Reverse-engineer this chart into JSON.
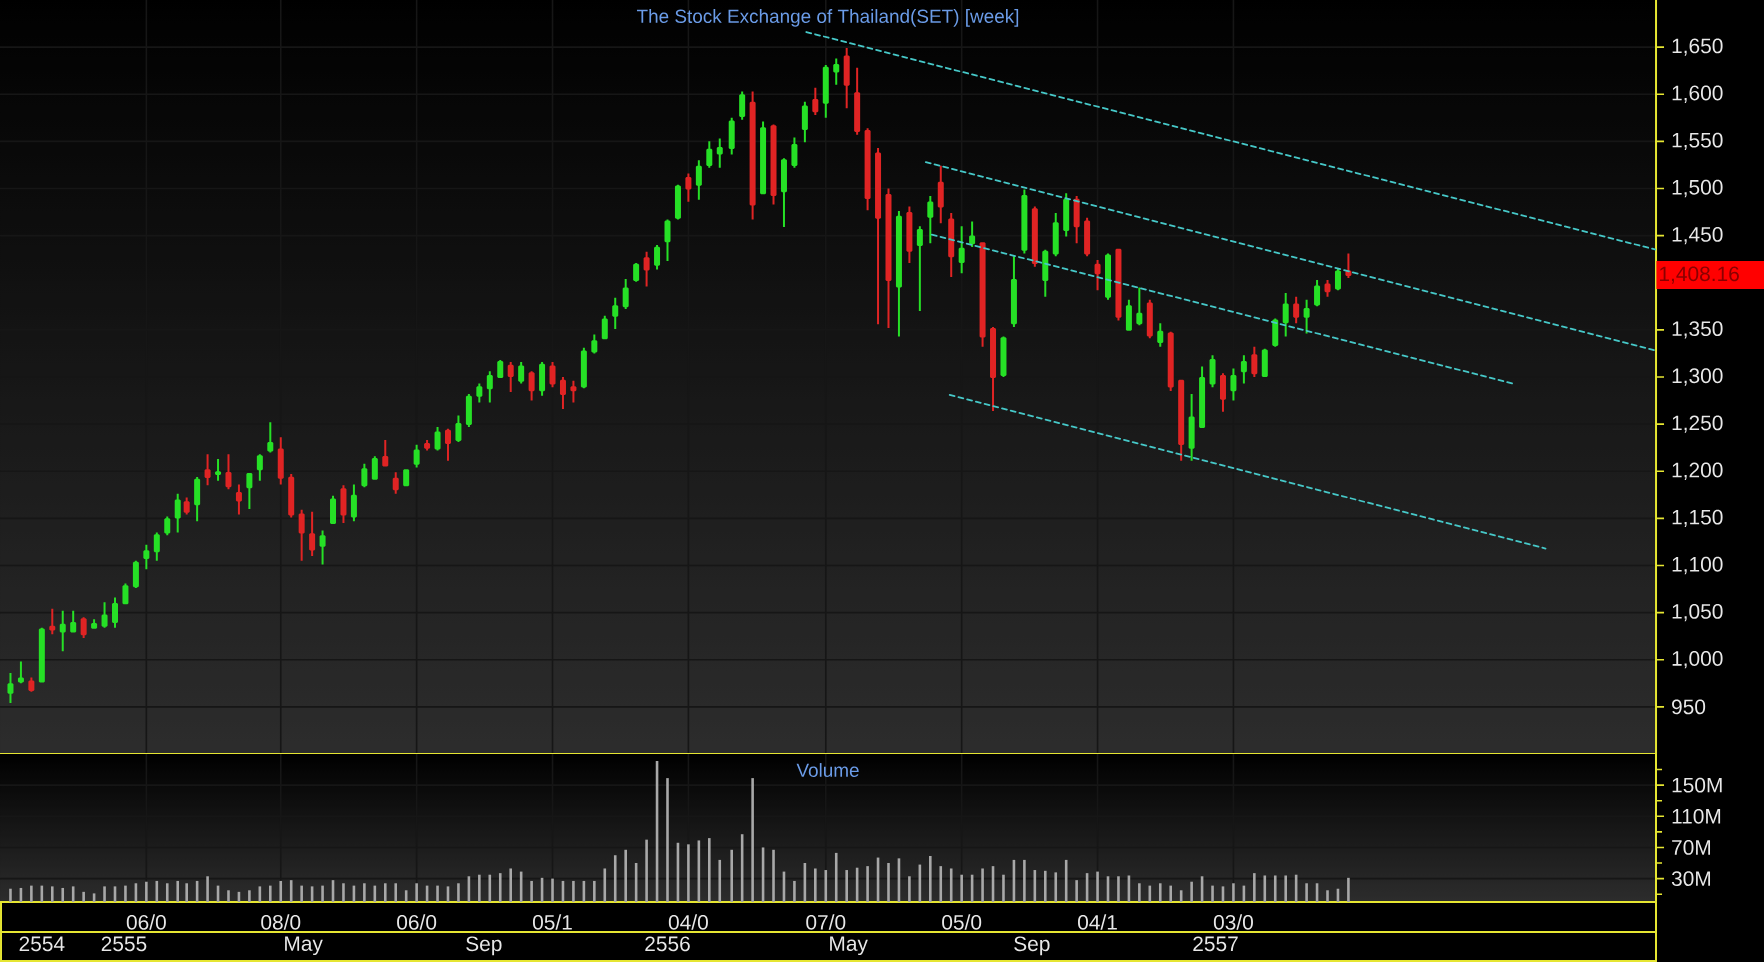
{
  "chart_data": [
    {
      "type": "candlestick",
      "title": "The Stock Exchange of Thailand(SET) [week]",
      "x": [
        "2554-11-07",
        "2554-11-14",
        "2554-11-21",
        "2554-11-28",
        "2554-12-05",
        "2554-12-12",
        "2554-12-19",
        "2554-12-26",
        "2555-01-02",
        "2555-01-09",
        "2555-01-16",
        "2555-01-23",
        "2555-01-30",
        "2555-02-06",
        "2555-02-13",
        "2555-02-20",
        "2555-02-27",
        "2555-03-05",
        "2555-03-12",
        "2555-03-19",
        "2555-03-26",
        "2555-04-02",
        "2555-04-09",
        "2555-04-16",
        "2555-04-23",
        "2555-04-30",
        "2555-05-07",
        "2555-05-14",
        "2555-05-21",
        "2555-05-28",
        "2555-06-04",
        "2555-06-11",
        "2555-06-18",
        "2555-06-25",
        "2555-07-02",
        "2555-07-09",
        "2555-07-16",
        "2555-07-23",
        "2555-07-30",
        "2555-08-06",
        "2555-08-13",
        "2555-08-20",
        "2555-08-27",
        "2555-09-03",
        "2555-09-10",
        "2555-09-17",
        "2555-09-24",
        "2555-10-01",
        "2555-10-08",
        "2555-10-15",
        "2555-10-22",
        "2555-10-29",
        "2555-11-05",
        "2555-11-12",
        "2555-11-19",
        "2555-11-26",
        "2555-12-03",
        "2555-12-10",
        "2555-12-17",
        "2555-12-24",
        "2555-12-31",
        "2556-01-07",
        "2556-01-14",
        "2556-01-21",
        "2556-01-28",
        "2556-02-04",
        "2556-02-11",
        "2556-02-18",
        "2556-02-25",
        "2556-03-04",
        "2556-03-11",
        "2556-03-18",
        "2556-03-25",
        "2556-04-01",
        "2556-04-08",
        "2556-04-15",
        "2556-04-22",
        "2556-04-29",
        "2556-05-06",
        "2556-05-13",
        "2556-05-20",
        "2556-05-27",
        "2556-06-03",
        "2556-06-10",
        "2556-06-17",
        "2556-06-24",
        "2556-07-01",
        "2556-07-08",
        "2556-07-15",
        "2556-07-22",
        "2556-07-29",
        "2556-08-05",
        "2556-08-12",
        "2556-08-19",
        "2556-08-26",
        "2556-09-02",
        "2556-09-09",
        "2556-09-16",
        "2556-09-23",
        "2556-09-30",
        "2556-10-07",
        "2556-10-14",
        "2556-10-21",
        "2556-10-28",
        "2556-11-04",
        "2556-11-11",
        "2556-11-18",
        "2556-11-25",
        "2556-12-02",
        "2556-12-09",
        "2556-12-16",
        "2556-12-23",
        "2556-12-30",
        "2557-01-06",
        "2557-01-13",
        "2557-01-20",
        "2557-01-27",
        "2557-02-03",
        "2557-02-10",
        "2557-02-17",
        "2557-02-24",
        "2557-03-03",
        "2557-03-10",
        "2557-03-17",
        "2557-03-24",
        "2557-03-31",
        "2557-04-07",
        "2557-04-14",
        "2557-04-21"
      ],
      "ohlc": [
        [
          965,
          986,
          954,
          974
        ],
        [
          977,
          998,
          975,
          980
        ],
        [
          977,
          981,
          966,
          968
        ],
        [
          977,
          1034,
          976,
          1032
        ],
        [
          1035,
          1054,
          1027,
          1032
        ],
        [
          1030,
          1052,
          1009,
          1037
        ],
        [
          1030,
          1052,
          1030,
          1039
        ],
        [
          1043,
          1045,
          1023,
          1027
        ],
        [
          1034,
          1043,
          1033,
          1038
        ],
        [
          1036,
          1061,
          1034,
          1047
        ],
        [
          1040,
          1066,
          1034,
          1059
        ],
        [
          1060,
          1081,
          1059,
          1078
        ],
        [
          1078,
          1105,
          1076,
          1103
        ],
        [
          1108,
          1122,
          1096,
          1115
        ],
        [
          1115,
          1135,
          1105,
          1132
        ],
        [
          1135,
          1152,
          1132,
          1149
        ],
        [
          1151,
          1176,
          1135,
          1169
        ],
        [
          1167,
          1172,
          1154,
          1157
        ],
        [
          1165,
          1194,
          1147,
          1191
        ],
        [
          1201,
          1218,
          1185,
          1194
        ],
        [
          1197,
          1213,
          1190,
          1199
        ],
        [
          1198,
          1218,
          1181,
          1184
        ],
        [
          1177,
          1186,
          1154,
          1169
        ],
        [
          1183,
          1197,
          1160,
          1197
        ],
        [
          1202,
          1218,
          1190,
          1216
        ],
        [
          1222,
          1252,
          1220,
          1230
        ],
        [
          1223,
          1236,
          1186,
          1193
        ],
        [
          1193,
          1197,
          1151,
          1154
        ],
        [
          1154,
          1159,
          1105,
          1135
        ],
        [
          1133,
          1157,
          1110,
          1117
        ],
        [
          1121,
          1137,
          1101,
          1131
        ],
        [
          1145,
          1174,
          1144,
          1170
        ],
        [
          1181,
          1185,
          1145,
          1154
        ],
        [
          1152,
          1186,
          1147,
          1174
        ],
        [
          1185,
          1208,
          1183,
          1202
        ],
        [
          1192,
          1216,
          1191,
          1213
        ],
        [
          1215,
          1233,
          1206,
          1206
        ],
        [
          1192,
          1199,
          1176,
          1181
        ],
        [
          1185,
          1202,
          1185,
          1201
        ],
        [
          1208,
          1228,
          1204,
          1222
        ],
        [
          1229,
          1233,
          1222,
          1225
        ],
        [
          1224,
          1247,
          1222,
          1241
        ],
        [
          1243,
          1245,
          1211,
          1230
        ],
        [
          1233,
          1259,
          1231,
          1250
        ],
        [
          1250,
          1282,
          1247,
          1279
        ],
        [
          1280,
          1293,
          1273,
          1289
        ],
        [
          1288,
          1306,
          1273,
          1301
        ],
        [
          1300,
          1318,
          1299,
          1316
        ],
        [
          1312,
          1316,
          1284,
          1301
        ],
        [
          1296,
          1316,
          1293,
          1311
        ],
        [
          1304,
          1306,
          1275,
          1286
        ],
        [
          1286,
          1316,
          1280,
          1313
        ],
        [
          1311,
          1316,
          1289,
          1293
        ],
        [
          1296,
          1300,
          1266,
          1282
        ],
        [
          1289,
          1296,
          1273,
          1286
        ],
        [
          1290,
          1331,
          1288,
          1327
        ],
        [
          1327,
          1345,
          1325,
          1338
        ],
        [
          1341,
          1365,
          1341,
          1361
        ],
        [
          1365,
          1384,
          1351,
          1375
        ],
        [
          1375,
          1404,
          1372,
          1394
        ],
        [
          1403,
          1421,
          1401,
          1419
        ],
        [
          1426,
          1433,
          1396,
          1414
        ],
        [
          1419,
          1440,
          1414,
          1437
        ],
        [
          1444,
          1467,
          1423,
          1465
        ],
        [
          1469,
          1504,
          1467,
          1502
        ],
        [
          1511,
          1516,
          1486,
          1500
        ],
        [
          1504,
          1530,
          1488,
          1523
        ],
        [
          1525,
          1550,
          1522,
          1541
        ],
        [
          1537,
          1553,
          1522,
          1543
        ],
        [
          1543,
          1575,
          1536,
          1571
        ],
        [
          1577,
          1603,
          1573,
          1599
        ],
        [
          1591,
          1603,
          1467,
          1483
        ],
        [
          1495,
          1571,
          1495,
          1564
        ],
        [
          1566,
          1568,
          1483,
          1493
        ],
        [
          1497,
          1532,
          1459,
          1530
        ],
        [
          1525,
          1554,
          1522,
          1546
        ],
        [
          1563,
          1592,
          1549,
          1587
        ],
        [
          1594,
          1607,
          1578,
          1582
        ],
        [
          1591,
          1631,
          1575,
          1628
        ],
        [
          1624,
          1638,
          1610,
          1631
        ],
        [
          1640,
          1649,
          1585,
          1610
        ],
        [
          1601,
          1628,
          1557,
          1561
        ],
        [
          1561,
          1564,
          1477,
          1490
        ],
        [
          1537,
          1543,
          1356,
          1469
        ],
        [
          1493,
          1500,
          1352,
          1403
        ],
        [
          1396,
          1476,
          1343,
          1470
        ],
        [
          1474,
          1481,
          1421,
          1434
        ],
        [
          1440,
          1460,
          1370,
          1456
        ],
        [
          1470,
          1492,
          1442,
          1485
        ],
        [
          1506,
          1524,
          1463,
          1481
        ],
        [
          1467,
          1474,
          1406,
          1428
        ],
        [
          1422,
          1460,
          1410,
          1436
        ],
        [
          1442,
          1465,
          1438,
          1449
        ],
        [
          1442,
          1443,
          1332,
          1343
        ],
        [
          1351,
          1353,
          1264,
          1300
        ],
        [
          1302,
          1343,
          1300,
          1341
        ],
        [
          1357,
          1428,
          1353,
          1403
        ],
        [
          1435,
          1499,
          1431,
          1492
        ],
        [
          1478,
          1481,
          1417,
          1421
        ],
        [
          1403,
          1435,
          1385,
          1433
        ],
        [
          1431,
          1474,
          1428,
          1463
        ],
        [
          1456,
          1495,
          1449,
          1488
        ],
        [
          1488,
          1492,
          1442,
          1460
        ],
        [
          1465,
          1469,
          1428,
          1431
        ],
        [
          1419,
          1424,
          1392,
          1410
        ],
        [
          1385,
          1431,
          1382,
          1429
        ],
        [
          1435,
          1435,
          1360,
          1364
        ],
        [
          1350,
          1382,
          1350,
          1375
        ],
        [
          1357,
          1395,
          1355,
          1367
        ],
        [
          1378,
          1382,
          1341,
          1344
        ],
        [
          1337,
          1357,
          1332,
          1348
        ],
        [
          1346,
          1348,
          1285,
          1290
        ],
        [
          1296,
          1296,
          1211,
          1229
        ],
        [
          1225,
          1282,
          1211,
          1257
        ],
        [
          1247,
          1311,
          1247,
          1299
        ],
        [
          1293,
          1323,
          1289,
          1318
        ],
        [
          1301,
          1304,
          1263,
          1277
        ],
        [
          1286,
          1309,
          1275,
          1301
        ],
        [
          1306,
          1323,
          1293,
          1316
        ],
        [
          1323,
          1332,
          1300,
          1304
        ],
        [
          1301,
          1330,
          1300,
          1328
        ],
        [
          1334,
          1362,
          1332,
          1360
        ],
        [
          1358,
          1389,
          1343,
          1377
        ],
        [
          1377,
          1385,
          1357,
          1364
        ],
        [
          1364,
          1382,
          1346,
          1372
        ],
        [
          1377,
          1403,
          1375,
          1396
        ],
        [
          1398,
          1403,
          1385,
          1391
        ],
        [
          1394,
          1415,
          1392,
          1412
        ],
        [
          1412,
          1431,
          1405,
          1408.16
        ]
      ],
      "colors": [
        "#26e026",
        "#26e026",
        "#e02424",
        "#26e026",
        "#e02424",
        "#26e026",
        "#26e026",
        "#e02424",
        "#26e026",
        "#26e026",
        "#26e026",
        "#26e026",
        "#26e026",
        "#26e026",
        "#26e026",
        "#26e026",
        "#26e026",
        "#e02424",
        "#26e026",
        "#e02424",
        "#26e026",
        "#e02424",
        "#e02424",
        "#26e026",
        "#26e026",
        "#26e026",
        "#e02424",
        "#e02424",
        "#e02424",
        "#e02424",
        "#26e026",
        "#26e026",
        "#e02424",
        "#26e026",
        "#26e026",
        "#26e026",
        "#e02424",
        "#e02424",
        "#26e026",
        "#26e026",
        "#e02424",
        "#26e026",
        "#e02424",
        "#26e026",
        "#26e026",
        "#26e026",
        "#26e026",
        "#26e026",
        "#e02424",
        "#26e026",
        "#e02424",
        "#26e026",
        "#e02424",
        "#e02424",
        "#e02424",
        "#26e026",
        "#26e026",
        "#26e026",
        "#26e026",
        "#26e026",
        "#26e026",
        "#e02424",
        "#26e026",
        "#26e026",
        "#26e026",
        "#e02424",
        "#26e026",
        "#26e026",
        "#26e026",
        "#26e026",
        "#26e026",
        "#e02424",
        "#26e026",
        "#e02424",
        "#26e026",
        "#26e026",
        "#26e026",
        "#e02424",
        "#26e026",
        "#26e026",
        "#e02424",
        "#e02424",
        "#e02424",
        "#e02424",
        "#e02424",
        "#26e026",
        "#e02424",
        "#26e026",
        "#26e026",
        "#e02424",
        "#e02424",
        "#26e026",
        "#26e026",
        "#e02424",
        "#e02424",
        "#26e026",
        "#26e026",
        "#26e026",
        "#e02424",
        "#26e026",
        "#26e026",
        "#26e026",
        "#e02424",
        "#e02424",
        "#e02424",
        "#26e026",
        "#e02424",
        "#26e026",
        "#26e026",
        "#e02424",
        "#26e026",
        "#e02424",
        "#e02424",
        "#26e026",
        "#26e026",
        "#26e026",
        "#e02424",
        "#26e026",
        "#26e026",
        "#e02424",
        "#26e026",
        "#26e026",
        "#26e026",
        "#e02424",
        "#26e026",
        "#26e026",
        "#e02424",
        "#26e026",
        "#e02424"
      ],
      "series": [
        {
          "type": "line",
          "x": [
            "2556-04-23",
            "2557-11-13"
          ],
          "values": [
            1666,
            1435
          ],
          "color": "#46c8c8",
          "line_style": "dashed"
        },
        {
          "type": "line",
          "x": [
            "2556-07-12",
            "2557-11-13"
          ],
          "values": [
            1528,
            1328
          ],
          "color": "#46c8c8",
          "line_style": "dashed"
        },
        {
          "type": "line",
          "x": [
            "2556-07-16",
            "2557-08-09"
          ],
          "values": [
            1451,
            1293
          ],
          "color": "#46c8c8",
          "line_style": "dashed"
        },
        {
          "type": "line",
          "x": [
            "2556-07-28",
            "2557-08-31"
          ],
          "values": [
            1281,
            1118
          ],
          "color": "#46c8c8",
          "line_style": "dashed"
        }
      ],
      "xlim": [
        "2554-10-31",
        "2557-11-13"
      ],
      "xticks": [
        {
          "value": "2555-02-06",
          "label": null
        },
        {
          "value": "2555-05-07",
          "label": null
        },
        {
          "value": "2555-08-06",
          "label": null
        },
        {
          "value": "2555-11-05",
          "label": null
        },
        {
          "value": "2556-02-04",
          "label": null
        },
        {
          "value": "2556-05-06",
          "label": null
        },
        {
          "value": "2556-08-05",
          "label": null
        },
        {
          "value": "2556-11-04",
          "label": null
        },
        {
          "value": "2557-02-03",
          "label": null
        }
      ],
      "ylim": [
        900,
        1700
      ],
      "yticks": [
        950,
        {
          "value": 1000,
          "label": "1,000"
        },
        {
          "value": 1050,
          "label": "1,050"
        },
        {
          "value": 1100,
          "label": "1,100"
        },
        {
          "value": 1150,
          "label": "1,150"
        },
        {
          "value": 1200,
          "label": "1,200"
        },
        {
          "value": 1250,
          "label": "1,250"
        },
        {
          "value": 1300,
          "label": "1,300"
        },
        {
          "value": 1350,
          "label": "1,350"
        },
        {
          "value": 1450,
          "label": "1,450"
        },
        {
          "value": 1500,
          "label": "1,500"
        },
        {
          "value": 1550,
          "label": "1,550"
        },
        {
          "value": 1600,
          "label": "1,600"
        },
        {
          "value": 1650,
          "label": "1,650"
        }
      ],
      "grid": true,
      "tick_labels": "y",
      "annotations": [
        "1,408.16"
      ]
    },
    {
      "type": "bar",
      "title": "Volume",
      "x": [
        "2554-11-07",
        "2554-11-14",
        "2554-11-21",
        "2554-11-28",
        "2554-12-05",
        "2554-12-12",
        "2554-12-19",
        "2554-12-26",
        "2555-01-02",
        "2555-01-09",
        "2555-01-16",
        "2555-01-23",
        "2555-01-30",
        "2555-02-06",
        "2555-02-13",
        "2555-02-20",
        "2555-02-27",
        "2555-03-05",
        "2555-03-12",
        "2555-03-19",
        "2555-03-26",
        "2555-04-02",
        "2555-04-09",
        "2555-04-16",
        "2555-04-23",
        "2555-04-30",
        "2555-05-07",
        "2555-05-14",
        "2555-05-21",
        "2555-05-28",
        "2555-06-04",
        "2555-06-11",
        "2555-06-18",
        "2555-06-25",
        "2555-07-02",
        "2555-07-09",
        "2555-07-16",
        "2555-07-23",
        "2555-07-30",
        "2555-08-06",
        "2555-08-13",
        "2555-08-20",
        "2555-08-27",
        "2555-09-03",
        "2555-09-10",
        "2555-09-17",
        "2555-09-24",
        "2555-10-01",
        "2555-10-08",
        "2555-10-15",
        "2555-10-22",
        "2555-10-29",
        "2555-11-05",
        "2555-11-12",
        "2555-11-19",
        "2555-11-26",
        "2555-12-03",
        "2555-12-10",
        "2555-12-17",
        "2555-12-24",
        "2555-12-31",
        "2556-01-07",
        "2556-01-14",
        "2556-01-21",
        "2556-01-28",
        "2556-02-04",
        "2556-02-11",
        "2556-02-18",
        "2556-02-25",
        "2556-03-04",
        "2556-03-11",
        "2556-03-18",
        "2556-03-25",
        "2556-04-01",
        "2556-04-08",
        "2556-04-15",
        "2556-04-22",
        "2556-04-29",
        "2556-05-06",
        "2556-05-13",
        "2556-05-20",
        "2556-05-27",
        "2556-06-03",
        "2556-06-10",
        "2556-06-17",
        "2556-06-24",
        "2556-07-01",
        "2556-07-08",
        "2556-07-15",
        "2556-07-22",
        "2556-07-29",
        "2556-08-05",
        "2556-08-12",
        "2556-08-19",
        "2556-08-26",
        "2556-09-02",
        "2556-09-09",
        "2556-09-16",
        "2556-09-23",
        "2556-09-30",
        "2556-10-07",
        "2556-10-14",
        "2556-10-21",
        "2556-10-28",
        "2556-11-04",
        "2556-11-11",
        "2556-11-18",
        "2556-11-25",
        "2556-12-02",
        "2556-12-09",
        "2556-12-16",
        "2556-12-23",
        "2556-12-30",
        "2557-01-06",
        "2557-01-13",
        "2557-01-20",
        "2557-01-27",
        "2557-02-03",
        "2557-02-10",
        "2557-02-17",
        "2557-02-24",
        "2557-03-03",
        "2557-03-10",
        "2557-03-17",
        "2557-03-24",
        "2557-03-31",
        "2557-04-07",
        "2557-04-14",
        "2557-04-21"
      ],
      "values": [
        17,
        18,
        21,
        21,
        20,
        18,
        20,
        13,
        11,
        20,
        20,
        21,
        24,
        26,
        27,
        24,
        27,
        24,
        27,
        33,
        21,
        15,
        13,
        15,
        20,
        21,
        27,
        28,
        21,
        20,
        21,
        28,
        24,
        21,
        24,
        21,
        24,
        24,
        15,
        24,
        21,
        21,
        20,
        24,
        33,
        35,
        35,
        37,
        43,
        39,
        27,
        31,
        30,
        27,
        27,
        27,
        27,
        43,
        60,
        67,
        50,
        80,
        181,
        159,
        76,
        74,
        79,
        82,
        54,
        67,
        87,
        159,
        70,
        67,
        39,
        27,
        50,
        43,
        41,
        63,
        41,
        44,
        46,
        57,
        50,
        56,
        33,
        48,
        59,
        46,
        43,
        35,
        35,
        43,
        46,
        35,
        54,
        54,
        41,
        40,
        38,
        54,
        28,
        37,
        39,
        33,
        33,
        34,
        24,
        21,
        24,
        21,
        15,
        26,
        33,
        21,
        20,
        24,
        21,
        37,
        34,
        34,
        34,
        35,
        24,
        24,
        15,
        17,
        31
      ],
      "color": "#a8a8a8",
      "xlim": [
        "2554-10-31",
        "2557-11-13"
      ],
      "xticks": [
        {
          "value": "2555-02-06",
          "label": "06/0"
        },
        {
          "value": "2555-05-07",
          "label": "08/0"
        },
        {
          "value": "2555-08-06",
          "label": "06/0"
        },
        {
          "value": "2555-11-05",
          "label": "05/1"
        },
        {
          "value": "2556-02-04",
          "label": "04/0"
        },
        {
          "value": "2556-05-06",
          "label": "07/0"
        },
        {
          "value": "2556-08-05",
          "label": "05/0"
        },
        {
          "value": "2556-11-04",
          "label": "04/1"
        },
        {
          "value": "2557-02-03",
          "label": "03/0"
        }
      ],
      "x2lim": [
        "2554-10-31",
        "2557-11-13"
      ],
      "x2ticks": [
        {
          "value": "2554-11-28",
          "label": "2554"
        },
        {
          "value": "2555-01-22",
          "label": "2555"
        },
        {
          "value": "2555-05-22",
          "label": "May"
        },
        {
          "value": "2555-09-20",
          "label": "Sep"
        },
        {
          "value": "2556-01-21",
          "label": "2556"
        },
        {
          "value": "2556-05-21",
          "label": "May"
        },
        {
          "value": "2556-09-21",
          "label": "Sep"
        },
        {
          "value": "2557-01-22",
          "label": "2557"
        }
      ],
      "ylim": [
        0,
        190
      ],
      "yticks": [
        {
          "value": 10,
          "label": null
        },
        {
          "value": 30,
          "label": "30M"
        },
        {
          "value": 50,
          "label": null
        },
        {
          "value": 70,
          "label": "70M"
        },
        {
          "value": 90,
          "label": null
        },
        {
          "value": 110,
          "label": "110M"
        },
        {
          "value": 130,
          "label": null
        },
        {
          "value": 150,
          "label": "150M"
        },
        {
          "value": 170,
          "label": null
        }
      ],
      "grid": true
    }
  ]
}
